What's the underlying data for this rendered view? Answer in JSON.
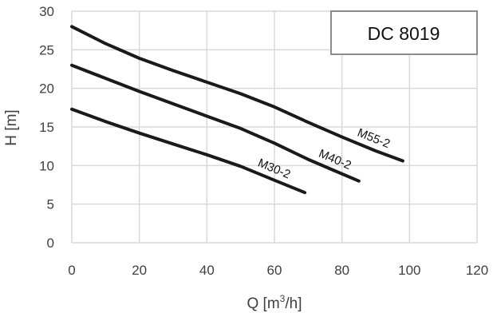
{
  "chart_data": {
    "type": "line",
    "xlabel": {
      "text": "Q [m",
      "sup": "3",
      "after": "/h]"
    },
    "ylabel": "H [m]",
    "xlim": [
      0,
      120
    ],
    "ylim": [
      0,
      30
    ],
    "x_ticks": [
      0,
      20,
      40,
      60,
      80,
      100,
      120
    ],
    "y_ticks": [
      0,
      5,
      10,
      15,
      20,
      25,
      30
    ],
    "grid": true,
    "model_box": "DC 8019",
    "series": [
      {
        "name": "M30-2",
        "color": "#1a1a1a",
        "points": [
          [
            0,
            17.3
          ],
          [
            10,
            15.7
          ],
          [
            20,
            14.2
          ],
          [
            30,
            12.8
          ],
          [
            40,
            11.4
          ],
          [
            50,
            9.9
          ],
          [
            60,
            8.1
          ],
          [
            69,
            6.5
          ]
        ]
      },
      {
        "name": "M40-2",
        "color": "#1a1a1a",
        "points": [
          [
            0,
            23.0
          ],
          [
            10,
            21.3
          ],
          [
            20,
            19.6
          ],
          [
            30,
            18.0
          ],
          [
            40,
            16.4
          ],
          [
            50,
            14.8
          ],
          [
            60,
            12.9
          ],
          [
            70,
            10.8
          ],
          [
            78,
            9.3
          ],
          [
            85,
            8.0
          ]
        ]
      },
      {
        "name": "M55-2",
        "color": "#1a1a1a",
        "points": [
          [
            0,
            28.0
          ],
          [
            10,
            25.8
          ],
          [
            20,
            23.9
          ],
          [
            30,
            22.3
          ],
          [
            40,
            20.8
          ],
          [
            50,
            19.3
          ],
          [
            60,
            17.6
          ],
          [
            70,
            15.6
          ],
          [
            80,
            13.7
          ],
          [
            90,
            11.9
          ],
          [
            98,
            10.6
          ]
        ]
      }
    ]
  }
}
